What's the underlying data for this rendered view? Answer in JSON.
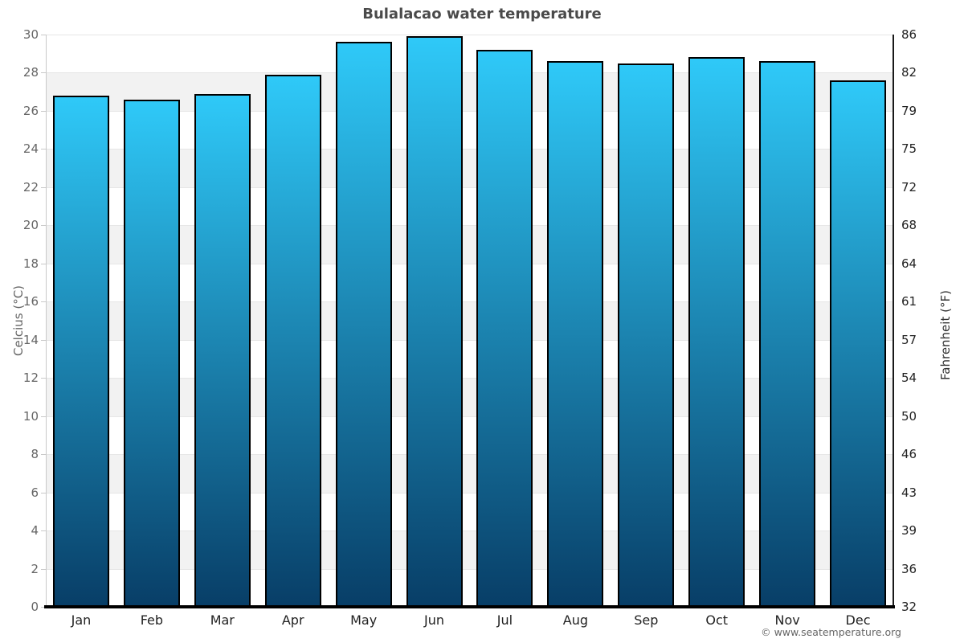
{
  "page": {
    "title": "Bulalacao water temperature",
    "footer_credit": "© www.seatemperature.org"
  },
  "chart_data": {
    "type": "bar",
    "title": "Bulalacao water temperature",
    "categories": [
      "Jan",
      "Feb",
      "Mar",
      "Apr",
      "May",
      "Jun",
      "Jul",
      "Aug",
      "Sep",
      "Oct",
      "Nov",
      "Dec"
    ],
    "series": [
      {
        "name": "Water temperature",
        "unit": "°C",
        "values": [
          26.8,
          26.6,
          26.9,
          27.9,
          29.6,
          29.9,
          29.2,
          28.6,
          28.5,
          28.8,
          28.6,
          27.6
        ]
      }
    ],
    "ylabel_left": "Celcius (°C)",
    "ylabel_right": "Fahrenheit (°F)",
    "xlabel": "",
    "ylim_celsius": [
      0,
      30
    ],
    "yticks_left": [
      "30",
      "28",
      "26",
      "24",
      "22",
      "20",
      "18",
      "16",
      "14",
      "12",
      "10",
      "8",
      "6",
      "4",
      "2",
      "0"
    ],
    "yticks_right": [
      "86",
      "82",
      "79",
      "75",
      "72",
      "68",
      "64",
      "61",
      "57",
      "54",
      "50",
      "46",
      "43",
      "39",
      "36",
      "32"
    ],
    "grid": "horizontal alternating bands every 2°C, white and light gray",
    "legend": "none",
    "colors": {
      "bar_gradient_top": "#2fc9f8",
      "bar_gradient_bottom": "#083e67",
      "bar_border": "#000000",
      "band_white": "#ffffff",
      "band_gray": "#f2f2f2",
      "gridline": "#e6e6e6",
      "left_axis_line": "#c9c9c9",
      "right_axis_line": "#1a1a1a",
      "baseline": "#000000",
      "title_text": "#4a4a4a",
      "left_tick_text": "#666666",
      "right_tick_text": "#222222",
      "month_text": "#222222",
      "footer_text": "#666666"
    }
  }
}
